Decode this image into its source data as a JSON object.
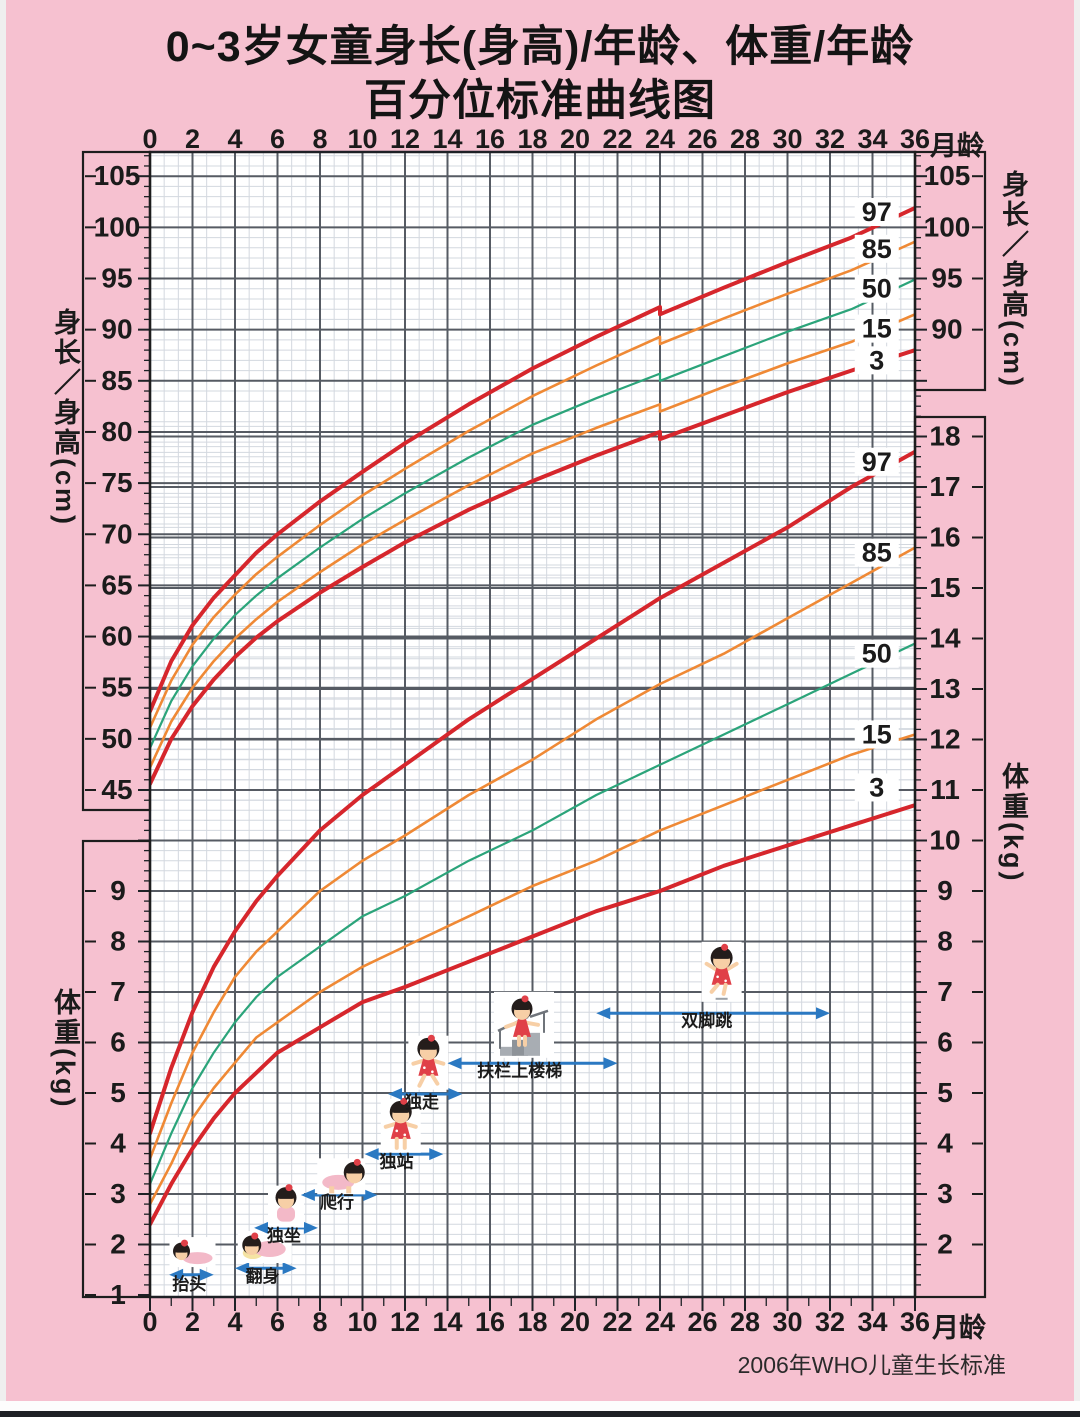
{
  "page": {
    "title_line1": "0~3岁女童身长(身高)/年龄、体重/年龄",
    "title_line2": "百分位标准曲线图",
    "caption": "2006年WHO儿童生长标准",
    "background_color": "#f6c1d0"
  },
  "axes": {
    "month_unit": "月龄",
    "top_month_ticks": [
      0,
      2,
      4,
      6,
      8,
      10,
      12,
      14,
      16,
      18,
      20,
      22,
      24,
      26,
      28,
      30,
      32,
      34,
      36
    ],
    "bottom_month_ticks": [
      0,
      2,
      4,
      6,
      8,
      10,
      12,
      14,
      16,
      18,
      20,
      22,
      24,
      26,
      28,
      30,
      32,
      34,
      36
    ],
    "left_height": {
      "label": "身长／身高(cm)",
      "ticks": [
        105,
        100,
        95,
        90,
        85,
        80,
        75,
        70,
        65,
        60,
        55,
        50,
        45
      ]
    },
    "right_height": {
      "label": "身长／身高(cm)",
      "ticks": [
        105,
        100,
        95,
        90
      ]
    },
    "left_weight": {
      "label": "体重(kg)",
      "ticks": [
        9,
        8,
        7,
        6,
        5,
        4,
        3,
        2,
        1
      ]
    },
    "right_weight": {
      "label": "体重(kg)",
      "ticks": [
        18,
        17,
        16,
        15,
        14,
        13,
        12,
        11,
        10,
        9,
        8,
        7,
        6,
        5,
        4,
        3,
        2
      ]
    }
  },
  "chart_data": {
    "type": "line",
    "title": "0~3岁女童身长(身高)/年龄、体重/年龄百分位标准曲线图",
    "x_unit": "月龄",
    "x_range": [
      0,
      36
    ],
    "grid": "on",
    "source_note": "2006年WHO儿童生长标准",
    "colors": {
      "p97_p3": "#d6262c",
      "p85_p15": "#ef8935",
      "p50": "#2ba47a",
      "arrow_blue": "#2b79c2"
    },
    "height_for_age": {
      "unit": "cm",
      "axis_range": [
        45,
        105
      ],
      "note": "curves step down 0.7cm at 24 months (length to standing height)",
      "series": [
        {
          "percentile": "97",
          "color": "#d6262c",
          "width": 4,
          "length_points": [
            [
              0,
              52.7
            ],
            [
              1,
              57.6
            ],
            [
              2,
              61.1
            ],
            [
              3,
              63.8
            ],
            [
              4,
              66.0
            ],
            [
              5,
              68.2
            ],
            [
              6,
              70.0
            ],
            [
              8,
              73.2
            ],
            [
              10,
              76.1
            ],
            [
              12,
              78.9
            ],
            [
              15,
              82.7
            ],
            [
              18,
              86.2
            ],
            [
              21,
              89.3
            ],
            [
              24,
              92.2
            ]
          ],
          "height_points": [
            [
              24,
              91.5
            ],
            [
              27,
              94.1
            ],
            [
              30,
              96.6
            ],
            [
              33,
              99.0
            ],
            [
              36,
              101.9
            ]
          ],
          "label_pos": [
            34.2,
            101.5
          ]
        },
        {
          "percentile": "85",
          "color": "#ef8935",
          "width": 2.6,
          "length_points": [
            [
              0,
              51.1
            ],
            [
              1,
              55.7
            ],
            [
              2,
              59.2
            ],
            [
              3,
              61.9
            ],
            [
              4,
              64.1
            ],
            [
              5,
              66.1
            ],
            [
              6,
              67.8
            ],
            [
              8,
              70.9
            ],
            [
              10,
              73.8
            ],
            [
              12,
              76.4
            ],
            [
              15,
              80.1
            ],
            [
              18,
              83.5
            ],
            [
              21,
              86.5
            ],
            [
              24,
              89.3
            ]
          ],
          "height_points": [
            [
              24,
              88.6
            ],
            [
              27,
              91.1
            ],
            [
              30,
              93.5
            ],
            [
              33,
              95.8
            ],
            [
              36,
              98.6
            ]
          ],
          "label_pos": [
            34.2,
            97.9
          ]
        },
        {
          "percentile": "50",
          "color": "#2ba47a",
          "width": 2.2,
          "length_points": [
            [
              0,
              49.1
            ],
            [
              1,
              53.7
            ],
            [
              2,
              57.1
            ],
            [
              3,
              59.8
            ],
            [
              4,
              62.1
            ],
            [
              5,
              64.0
            ],
            [
              6,
              65.7
            ],
            [
              8,
              68.7
            ],
            [
              10,
              71.5
            ],
            [
              12,
              74.0
            ],
            [
              15,
              77.5
            ],
            [
              18,
              80.7
            ],
            [
              21,
              83.3
            ],
            [
              24,
              85.7
            ]
          ],
          "height_points": [
            [
              24,
              85.0
            ],
            [
              27,
              87.4
            ],
            [
              30,
              89.8
            ],
            [
              33,
              92.0
            ],
            [
              36,
              94.9
            ]
          ],
          "label_pos": [
            34.2,
            94.0
          ]
        },
        {
          "percentile": "15",
          "color": "#ef8935",
          "width": 2.6,
          "length_points": [
            [
              0,
              47.2
            ],
            [
              1,
              51.7
            ],
            [
              2,
              55.0
            ],
            [
              3,
              57.6
            ],
            [
              4,
              59.8
            ],
            [
              5,
              61.7
            ],
            [
              6,
              63.4
            ],
            [
              8,
              66.3
            ],
            [
              10,
              69.0
            ],
            [
              12,
              71.4
            ],
            [
              15,
              74.8
            ],
            [
              18,
              77.9
            ],
            [
              21,
              80.4
            ],
            [
              24,
              82.7
            ]
          ],
          "height_points": [
            [
              24,
              82.0
            ],
            [
              27,
              84.4
            ],
            [
              30,
              86.7
            ],
            [
              33,
              88.8
            ],
            [
              36,
              91.5
            ]
          ],
          "label_pos": [
            34.2,
            90.1
          ]
        },
        {
          "percentile": "3",
          "color": "#d6262c",
          "width": 4,
          "length_points": [
            [
              0,
              45.6
            ],
            [
              1,
              50.0
            ],
            [
              2,
              53.2
            ],
            [
              3,
              55.8
            ],
            [
              4,
              58.0
            ],
            [
              5,
              59.9
            ],
            [
              6,
              61.5
            ],
            [
              8,
              64.3
            ],
            [
              10,
              66.8
            ],
            [
              12,
              69.2
            ],
            [
              15,
              72.4
            ],
            [
              18,
              75.2
            ],
            [
              21,
              77.7
            ],
            [
              24,
              80.0
            ]
          ],
          "height_points": [
            [
              24,
              79.3
            ],
            [
              27,
              81.6
            ],
            [
              30,
              83.9
            ],
            [
              33,
              86.0
            ],
            [
              36,
              88.0
            ]
          ],
          "label_pos": [
            34.2,
            87.0
          ]
        }
      ]
    },
    "weight_for_age": {
      "unit": "kg",
      "axis_range": [
        1,
        18
      ],
      "series": [
        {
          "percentile": "97",
          "color": "#d6262c",
          "width": 4,
          "points": [
            [
              0,
              4.2
            ],
            [
              1,
              5.5
            ],
            [
              2,
              6.6
            ],
            [
              3,
              7.5
            ],
            [
              4,
              8.2
            ],
            [
              5,
              8.8
            ],
            [
              6,
              9.3
            ],
            [
              8,
              10.2
            ],
            [
              10,
              10.9
            ],
            [
              12,
              11.5
            ],
            [
              15,
              12.4
            ],
            [
              18,
              13.2
            ],
            [
              21,
              14.0
            ],
            [
              24,
              14.8
            ],
            [
              27,
              15.5
            ],
            [
              30,
              16.2
            ],
            [
              33,
              17.0
            ],
            [
              36,
              17.7
            ]
          ],
          "label_pos": [
            34.2,
            17.5
          ]
        },
        {
          "percentile": "85",
          "color": "#ef8935",
          "width": 2.6,
          "points": [
            [
              0,
              3.7
            ],
            [
              1,
              4.8
            ],
            [
              2,
              5.8
            ],
            [
              3,
              6.6
            ],
            [
              4,
              7.3
            ],
            [
              5,
              7.8
            ],
            [
              6,
              8.2
            ],
            [
              8,
              9.0
            ],
            [
              10,
              9.6
            ],
            [
              12,
              10.1
            ],
            [
              15,
              10.9
            ],
            [
              18,
              11.6
            ],
            [
              21,
              12.4
            ],
            [
              24,
              13.1
            ],
            [
              27,
              13.7
            ],
            [
              30,
              14.4
            ],
            [
              33,
              15.1
            ],
            [
              36,
              15.8
            ]
          ],
          "label_pos": [
            34.2,
            15.7
          ]
        },
        {
          "percentile": "50",
          "color": "#2ba47a",
          "width": 2.2,
          "points": [
            [
              0,
              3.2
            ],
            [
              1,
              4.2
            ],
            [
              2,
              5.1
            ],
            [
              3,
              5.8
            ],
            [
              4,
              6.4
            ],
            [
              5,
              6.9
            ],
            [
              6,
              7.3
            ],
            [
              8,
              7.9
            ],
            [
              10,
              8.5
            ],
            [
              12,
              8.9
            ],
            [
              15,
              9.6
            ],
            [
              18,
              10.2
            ],
            [
              21,
              10.9
            ],
            [
              24,
              11.5
            ],
            [
              27,
              12.1
            ],
            [
              30,
              12.7
            ],
            [
              33,
              13.3
            ],
            [
              36,
              13.9
            ]
          ],
          "label_pos": [
            34.2,
            13.7
          ]
        },
        {
          "percentile": "15",
          "color": "#ef8935",
          "width": 2.6,
          "points": [
            [
              0,
              2.8
            ],
            [
              1,
              3.6
            ],
            [
              2,
              4.5
            ],
            [
              3,
              5.1
            ],
            [
              4,
              5.6
            ],
            [
              5,
              6.1
            ],
            [
              6,
              6.4
            ],
            [
              8,
              7.0
            ],
            [
              10,
              7.5
            ],
            [
              12,
              7.9
            ],
            [
              15,
              8.5
            ],
            [
              18,
              9.1
            ],
            [
              21,
              9.6
            ],
            [
              24,
              10.2
            ],
            [
              27,
              10.7
            ],
            [
              30,
              11.2
            ],
            [
              33,
              11.7
            ],
            [
              36,
              12.1
            ]
          ],
          "label_pos": [
            34.2,
            12.1
          ]
        },
        {
          "percentile": "3",
          "color": "#d6262c",
          "width": 4,
          "points": [
            [
              0,
              2.4
            ],
            [
              1,
              3.2
            ],
            [
              2,
              3.9
            ],
            [
              3,
              4.5
            ],
            [
              4,
              5.0
            ],
            [
              5,
              5.4
            ],
            [
              6,
              5.8
            ],
            [
              8,
              6.3
            ],
            [
              10,
              6.8
            ],
            [
              12,
              7.1
            ],
            [
              15,
              7.6
            ],
            [
              18,
              8.1
            ],
            [
              21,
              8.6
            ],
            [
              24,
              9.0
            ],
            [
              27,
              9.5
            ],
            [
              30,
              9.9
            ],
            [
              33,
              10.3
            ],
            [
              36,
              10.7
            ]
          ],
          "label_pos": [
            34.2,
            11.05
          ]
        }
      ]
    },
    "milestones": [
      {
        "label": "抬头",
        "pose": "lifthead",
        "arrow_months": [
          0.9,
          3.0
        ],
        "arrow_kg": 1.4,
        "label_at": [
          1.85,
          1.1
        ],
        "figure_at": [
          2.0,
          1.85
        ]
      },
      {
        "label": "翻身",
        "pose": "rollover",
        "arrow_months": [
          4.0,
          6.9
        ],
        "arrow_kg": 1.53,
        "label_at": [
          5.3,
          1.26
        ],
        "figure_at": [
          5.4,
          1.95
        ]
      },
      {
        "label": "独坐",
        "pose": "sit",
        "arrow_months": [
          4.9,
          7.9
        ],
        "arrow_kg": 2.33,
        "label_at": [
          6.3,
          2.06
        ],
        "figure_at": [
          6.4,
          2.75
        ]
      },
      {
        "label": "爬行",
        "pose": "crawl",
        "arrow_months": [
          7.1,
          10.7
        ],
        "arrow_kg": 2.98,
        "label_at": [
          8.8,
          2.72
        ],
        "figure_at": [
          9.0,
          3.35
        ]
      },
      {
        "label": "独站",
        "pose": "stand",
        "arrow_months": [
          10.1,
          13.8
        ],
        "arrow_kg": 3.79,
        "label_at": [
          11.6,
          3.52
        ],
        "figure_at": [
          11.8,
          4.35
        ]
      },
      {
        "label": "独走",
        "pose": "walk",
        "arrow_months": [
          11.2,
          14.7
        ],
        "arrow_kg": 4.98,
        "label_at": [
          12.8,
          4.7
        ],
        "figure_at": [
          13.1,
          5.6
        ]
      },
      {
        "label": "扶栏上楼梯",
        "pose": "stairs",
        "arrow_months": [
          14.0,
          22.0
        ],
        "arrow_kg": 5.59,
        "label_at": [
          17.4,
          5.33
        ],
        "figure_at": [
          17.6,
          6.35
        ]
      },
      {
        "label": "双脚跳",
        "pose": "jump",
        "arrow_months": [
          21.0,
          32.0
        ],
        "arrow_kg": 6.58,
        "label_at": [
          26.2,
          6.32
        ],
        "figure_at": [
          26.9,
          7.4
        ]
      }
    ]
  }
}
